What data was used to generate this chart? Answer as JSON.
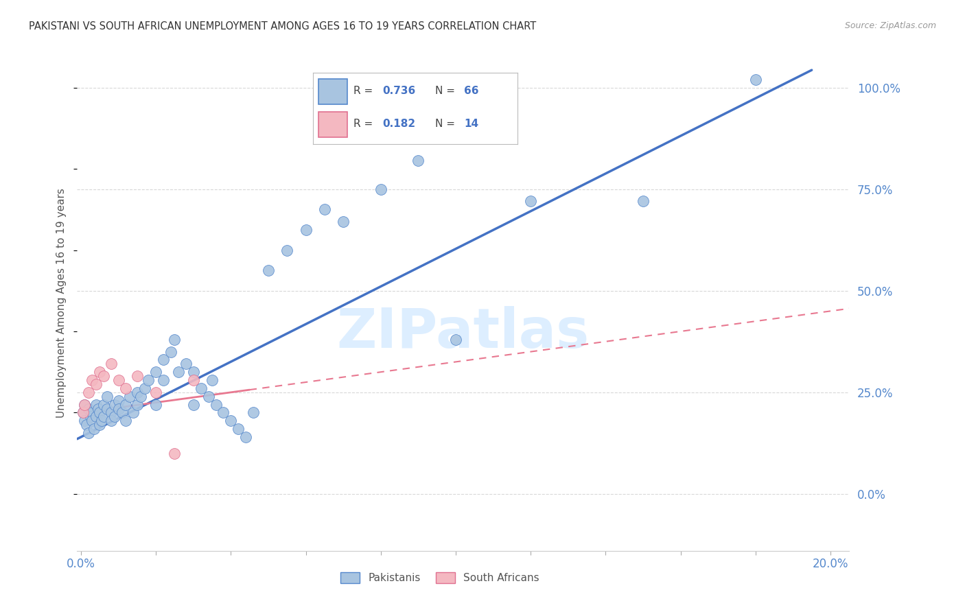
{
  "title": "PAKISTANI VS SOUTH AFRICAN UNEMPLOYMENT AMONG AGES 16 TO 19 YEARS CORRELATION CHART",
  "source": "Source: ZipAtlas.com",
  "ylabel": "Unemployment Among Ages 16 to 19 years",
  "pakistani_color": "#a8c4e0",
  "south_african_color": "#f4b8c1",
  "pakistani_edge_color": "#5588cc",
  "south_african_edge_color": "#e07090",
  "pakistani_line_color": "#4472c4",
  "south_african_line_color": "#e87890",
  "background_color": "#ffffff",
  "grid_color": "#d8d8d8",
  "watermark_color": "#ddeeff",
  "pakistani_x": [
    0.0005,
    0.001,
    0.001,
    0.0015,
    0.002,
    0.002,
    0.0025,
    0.003,
    0.003,
    0.0035,
    0.004,
    0.004,
    0.0045,
    0.005,
    0.005,
    0.0055,
    0.006,
    0.006,
    0.007,
    0.007,
    0.008,
    0.008,
    0.009,
    0.009,
    0.01,
    0.01,
    0.011,
    0.012,
    0.012,
    0.013,
    0.014,
    0.015,
    0.015,
    0.016,
    0.017,
    0.018,
    0.02,
    0.02,
    0.022,
    0.022,
    0.024,
    0.025,
    0.026,
    0.028,
    0.03,
    0.03,
    0.032,
    0.034,
    0.035,
    0.036,
    0.038,
    0.04,
    0.042,
    0.044,
    0.046,
    0.05,
    0.055,
    0.06,
    0.065,
    0.07,
    0.08,
    0.09,
    0.1,
    0.12,
    0.15,
    0.18
  ],
  "pakistani_y": [
    0.2,
    0.18,
    0.22,
    0.17,
    0.21,
    0.15,
    0.19,
    0.2,
    0.18,
    0.16,
    0.22,
    0.19,
    0.21,
    0.2,
    0.17,
    0.18,
    0.22,
    0.19,
    0.21,
    0.24,
    0.2,
    0.18,
    0.22,
    0.19,
    0.23,
    0.21,
    0.2,
    0.22,
    0.18,
    0.24,
    0.2,
    0.22,
    0.25,
    0.24,
    0.26,
    0.28,
    0.3,
    0.22,
    0.33,
    0.28,
    0.35,
    0.38,
    0.3,
    0.32,
    0.3,
    0.22,
    0.26,
    0.24,
    0.28,
    0.22,
    0.2,
    0.18,
    0.16,
    0.14,
    0.2,
    0.55,
    0.6,
    0.65,
    0.7,
    0.67,
    0.75,
    0.82,
    0.38,
    0.72,
    0.72,
    1.02
  ],
  "south_african_x": [
    0.0005,
    0.001,
    0.002,
    0.003,
    0.004,
    0.005,
    0.006,
    0.008,
    0.01,
    0.012,
    0.015,
    0.02,
    0.025,
    0.03
  ],
  "south_african_y": [
    0.2,
    0.22,
    0.25,
    0.28,
    0.27,
    0.3,
    0.29,
    0.32,
    0.28,
    0.26,
    0.29,
    0.25,
    0.1,
    0.28
  ],
  "xlim_min": -0.001,
  "xlim_max": 0.205,
  "ylim_min": -0.14,
  "ylim_max": 1.08,
  "ytick_vals": [
    0.0,
    0.25,
    0.5,
    0.75,
    1.0
  ],
  "ytick_labels": [
    "0.0%",
    "25.0%",
    "50.0%",
    "75.0%",
    "100.0%"
  ],
  "xtick_vals": [
    0.0,
    0.02,
    0.04,
    0.06,
    0.08,
    0.1,
    0.12,
    0.14,
    0.16,
    0.18,
    0.2
  ],
  "xtick_labels": [
    "0.0%",
    "",
    "",
    "",
    "",
    "",
    "",
    "",
    "",
    "",
    "20.0%"
  ]
}
